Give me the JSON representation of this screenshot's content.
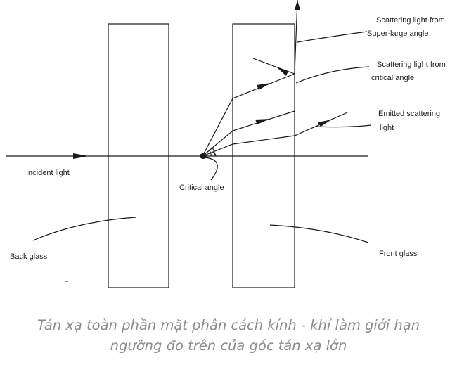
{
  "diagram": {
    "labels": {
      "scatter_super_1": "Scattering light from",
      "scatter_super_2": "Super-large angle",
      "scatter_critical_1": "Scattering light from",
      "scatter_critical_2": "critical angle",
      "emitted_1": "Emitted scattering",
      "emitted_2": "light",
      "incident": "Incident light",
      "critical_angle": "Critical angle",
      "back_glass": "Back glass",
      "front_glass": "Front glass"
    },
    "colors": {
      "line": "#1a1a1a",
      "caption": "#8c8c8c"
    }
  },
  "caption": {
    "line1": "Tán xạ toàn phần mặt phân cách kính - khí làm giới hạn",
    "line2": "ngưỡng đo trên của góc tán xạ lớn"
  }
}
